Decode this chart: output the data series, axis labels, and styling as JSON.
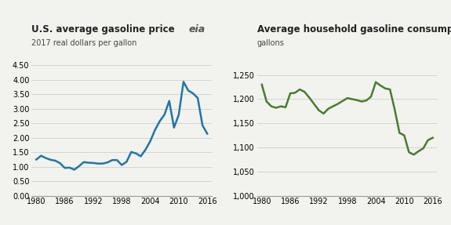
{
  "left_title": "U.S. average gasoline price",
  "left_subtitle": "2017 real dollars per gallon",
  "right_title": "Average household gasoline consumption",
  "right_subtitle": "gallons",
  "left_color": "#2076a8",
  "right_color": "#4a7c2f",
  "left_years": [
    1980,
    1981,
    1982,
    1983,
    1984,
    1985,
    1986,
    1987,
    1988,
    1989,
    1990,
    1991,
    1992,
    1993,
    1994,
    1995,
    1996,
    1997,
    1998,
    1999,
    2000,
    2001,
    2002,
    2003,
    2004,
    2005,
    2006,
    2007,
    2008,
    2009,
    2010,
    2011,
    2012,
    2013,
    2014,
    2015,
    2016
  ],
  "left_values": [
    1.25,
    1.38,
    1.3,
    1.24,
    1.21,
    1.12,
    0.96,
    0.97,
    0.9,
    1.02,
    1.16,
    1.14,
    1.13,
    1.11,
    1.11,
    1.15,
    1.23,
    1.23,
    1.06,
    1.17,
    1.51,
    1.46,
    1.36,
    1.59,
    1.88,
    2.27,
    2.57,
    2.8,
    3.27,
    2.35,
    2.79,
    3.93,
    3.63,
    3.53,
    3.37,
    2.43,
    2.14
  ],
  "right_years": [
    1980,
    1981,
    1982,
    1983,
    1984,
    1985,
    1986,
    1987,
    1988,
    1989,
    1990,
    1991,
    1992,
    1993,
    1994,
    1995,
    1996,
    1997,
    1998,
    1999,
    2000,
    2001,
    2002,
    2003,
    2004,
    2005,
    2006,
    2007,
    2008,
    2009,
    2010,
    2011,
    2012,
    2013,
    2014,
    2015,
    2016
  ],
  "right_values": [
    1230,
    1195,
    1185,
    1182,
    1185,
    1183,
    1212,
    1213,
    1220,
    1215,
    1203,
    1190,
    1177,
    1170,
    1180,
    1185,
    1190,
    1196,
    1202,
    1200,
    1198,
    1195,
    1197,
    1205,
    1235,
    1228,
    1222,
    1220,
    1178,
    1130,
    1125,
    1090,
    1085,
    1092,
    1098,
    1115,
    1120
  ],
  "left_ylim": [
    0.0,
    4.5
  ],
  "left_yticks": [
    0.0,
    0.5,
    1.0,
    1.5,
    2.0,
    2.5,
    3.0,
    3.5,
    4.0,
    4.5
  ],
  "right_ylim": [
    1000,
    1270
  ],
  "right_yticks": [
    1000,
    1050,
    1100,
    1150,
    1200,
    1250
  ],
  "xlim": [
    1979,
    2017
  ],
  "xticks": [
    1980,
    1986,
    1992,
    1998,
    2004,
    2010,
    2016
  ],
  "background_color": "#f2f2ee",
  "grid_color": "#d0d0d0",
  "line_width": 1.8,
  "title_fontsize": 8.5,
  "subtitle_fontsize": 7.0,
  "tick_fontsize": 7.0
}
